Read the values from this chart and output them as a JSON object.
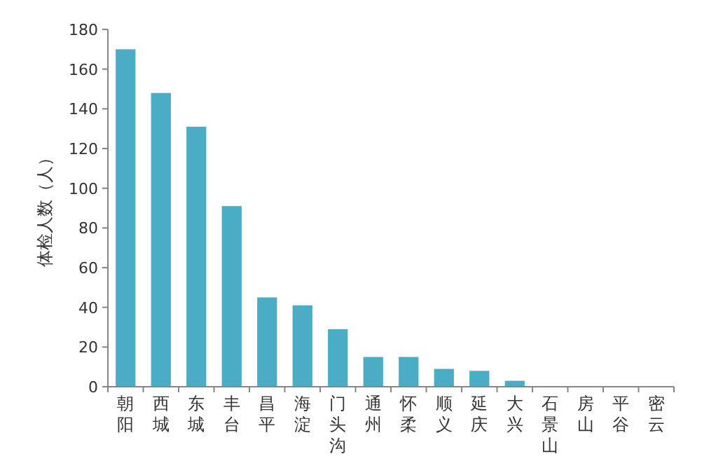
{
  "chart_data": {
    "type": "bar",
    "ylabel": "体检人数（人）",
    "categories": [
      "朝阳",
      "西城",
      "东城",
      "丰台",
      "昌平",
      "海淀",
      "门头沟",
      "通州",
      "怀柔",
      "顺义",
      "延庆",
      "大兴",
      "石景山",
      "房山",
      "平谷",
      "密云"
    ],
    "values": [
      170,
      148,
      131,
      91,
      45,
      41,
      29,
      15,
      15,
      9,
      8,
      3,
      0,
      0,
      0,
      0
    ],
    "color": "#4bacc6",
    "ylim": [
      0,
      180
    ],
    "yticks": [
      0,
      20,
      40,
      60,
      80,
      100,
      120,
      140,
      160,
      180
    ]
  }
}
